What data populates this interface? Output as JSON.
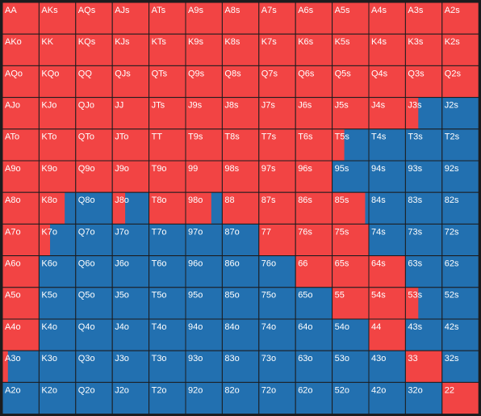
{
  "hands": [
    [
      "AA",
      "AKs",
      "AQs",
      "AJs",
      "ATs",
      "A9s",
      "A8s",
      "A7s",
      "A6s",
      "A5s",
      "A4s",
      "A3s",
      "A2s"
    ],
    [
      "AKo",
      "KK",
      "KQs",
      "KJs",
      "KTs",
      "K9s",
      "K8s",
      "K7s",
      "K6s",
      "K5s",
      "K4s",
      "K3s",
      "K2s"
    ],
    [
      "AQo",
      "KQo",
      "QQ",
      "QJs",
      "QTs",
      "Q9s",
      "Q8s",
      "Q7s",
      "Q6s",
      "Q5s",
      "Q4s",
      "Q3s",
      "Q2s"
    ],
    [
      "AJo",
      "KJo",
      "QJo",
      "JJ",
      "JTs",
      "J9s",
      "J8s",
      "J7s",
      "J6s",
      "J5s",
      "J4s",
      "J3s",
      "J2s"
    ],
    [
      "ATo",
      "KTo",
      "QTo",
      "JTo",
      "TT",
      "T9s",
      "T8s",
      "T7s",
      "T6s",
      "T5s",
      "T4s",
      "T3s",
      "T2s"
    ],
    [
      "A9o",
      "K9o",
      "Q9o",
      "J9o",
      "T9o",
      "99",
      "98s",
      "97s",
      "96s",
      "95s",
      "94s",
      "93s",
      "92s"
    ],
    [
      "A8o",
      "K8o",
      "Q8o",
      "J8o",
      "T8o",
      "98o",
      "88",
      "87s",
      "86s",
      "85s",
      "84s",
      "83s",
      "82s"
    ],
    [
      "A7o",
      "K7o",
      "Q7o",
      "J7o",
      "T7o",
      "97o",
      "87o",
      "77",
      "76s",
      "75s",
      "74s",
      "73s",
      "72s"
    ],
    [
      "A6o",
      "K6o",
      "Q6o",
      "J6o",
      "T6o",
      "96o",
      "86o",
      "76o",
      "66",
      "65s",
      "64s",
      "63s",
      "62s"
    ],
    [
      "A5o",
      "K5o",
      "Q5o",
      "J5o",
      "T5o",
      "95o",
      "85o",
      "75o",
      "65o",
      "55",
      "54s",
      "53s",
      "52s"
    ],
    [
      "A4o",
      "K4o",
      "Q4o",
      "J4o",
      "T4o",
      "94o",
      "84o",
      "74o",
      "64o",
      "54o",
      "44",
      "43s",
      "42s"
    ],
    [
      "A3o",
      "K3o",
      "Q3o",
      "J3o",
      "T3o",
      "93o",
      "83o",
      "73o",
      "63o",
      "53o",
      "43o",
      "33",
      "32s"
    ],
    [
      "A2o",
      "K2o",
      "Q2o",
      "J2o",
      "T2o",
      "92o",
      "82o",
      "72o",
      "62o",
      "52o",
      "42o",
      "32o",
      "22"
    ]
  ],
  "raise": [
    [
      1,
      1,
      1,
      1,
      1,
      1,
      1,
      1,
      1,
      1,
      1,
      1,
      1
    ],
    [
      1,
      1,
      1,
      1,
      1,
      1,
      1,
      1,
      1,
      1,
      1,
      1,
      1
    ],
    [
      1,
      1,
      1,
      1,
      1,
      1,
      1,
      1,
      1,
      1,
      1,
      1,
      1
    ],
    [
      1,
      1,
      1,
      1,
      1,
      1,
      1,
      1,
      1,
      1,
      1,
      0.35,
      0
    ],
    [
      1,
      1,
      1,
      1,
      1,
      1,
      1,
      1,
      1,
      0.33,
      0,
      0,
      0
    ],
    [
      1,
      1,
      1,
      1,
      1,
      1,
      1,
      1,
      1,
      0,
      0,
      0,
      0
    ],
    [
      1,
      0.7,
      0,
      0.35,
      1,
      0.7,
      1,
      1,
      1,
      0.9,
      0,
      0,
      0
    ],
    [
      1,
      0.3,
      0,
      0,
      0,
      0,
      0,
      1,
      1,
      1,
      0,
      0,
      0
    ],
    [
      1,
      0,
      0,
      0,
      0,
      0,
      0,
      0,
      1,
      1,
      1,
      0,
      0
    ],
    [
      1,
      0,
      0,
      0,
      0,
      0,
      0,
      0,
      0,
      1,
      1,
      0.35,
      0
    ],
    [
      1,
      0,
      0,
      0,
      0,
      0,
      0,
      0,
      0,
      0,
      1,
      0,
      0
    ],
    [
      0.15,
      0,
      0,
      0,
      0,
      0,
      0,
      0,
      0,
      0,
      0,
      1,
      0
    ],
    [
      0,
      0,
      0,
      0,
      0,
      0,
      0,
      0,
      0,
      0,
      0,
      0,
      1
    ]
  ],
  "colors": {
    "raise": "#f24444",
    "fold": "#2270b0"
  }
}
